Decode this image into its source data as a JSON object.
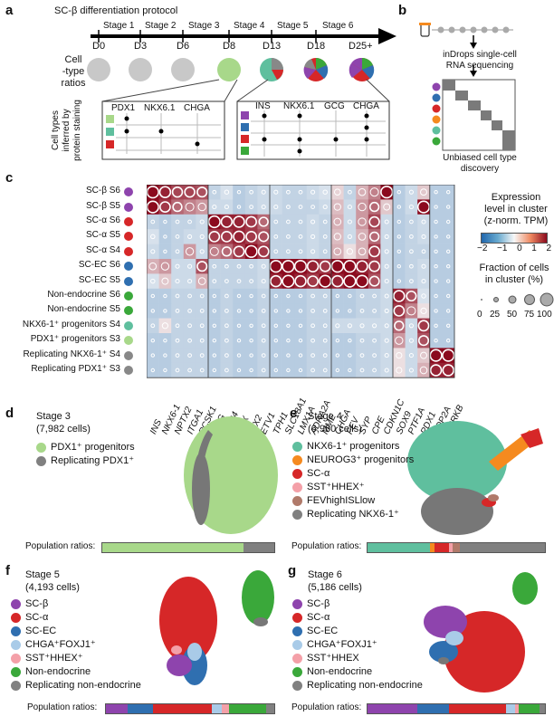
{
  "panel_a": {
    "letter": "a",
    "title": "SC-β differentiation protocol",
    "stages": [
      "Stage 1",
      "Stage 2",
      "Stage 3",
      "Stage 4",
      "Stage 5",
      "Stage 6"
    ],
    "days": [
      "D0",
      "D3",
      "D6",
      "D8",
      "D13",
      "D18",
      "D25+"
    ],
    "celltype_label": "Cell\n-type\nratios",
    "inferred_label": "Cell types inferred by protein staining",
    "box1_headers": [
      "PDX1",
      "NKX6.1",
      "CHGA"
    ],
    "box2_headers": [
      "INS",
      "NKX6.1",
      "GCG",
      "CHGA"
    ]
  },
  "panel_b": {
    "letter": "b",
    "text1": "inDrops single-cell",
    "text2": "RNA sequencing",
    "caption1": "Unbiased cell type",
    "caption2": "discovery"
  },
  "panel_c": {
    "letter": "c",
    "rows": [
      {
        "name": "SC-β",
        "stage": "S6",
        "color": "#8e44ad"
      },
      {
        "name": "SC-β",
        "stage": "S5",
        "color": "#8e44ad"
      },
      {
        "name": "SC-α",
        "stage": "S6",
        "color": "#d62728"
      },
      {
        "name": "SC-α",
        "stage": "S5",
        "color": "#d62728"
      },
      {
        "name": "SC-α",
        "stage": "S4",
        "color": "#d62728"
      },
      {
        "name": "SC-EC",
        "stage": "S6",
        "color": "#2f6fb0"
      },
      {
        "name": "SC-EC",
        "stage": "S5",
        "color": "#2f6fb0"
      },
      {
        "name": "Non-endocrine",
        "stage": "S6",
        "color": "#3aa83a"
      },
      {
        "name": "Non-endocrine",
        "stage": "S5",
        "color": "#3aa83a"
      },
      {
        "name": "NKX6-1⁺ progenitors",
        "stage": "S4",
        "color": "#5fbf9e"
      },
      {
        "name": "PDX1⁺ progenitors",
        "stage": "S3",
        "color": "#a8d88a"
      },
      {
        "name": "Replicating NKX6-1⁺",
        "stage": "S4",
        "color": "#888888"
      },
      {
        "name": "Replicating PDX1⁺",
        "stage": "S3",
        "color": "#888888"
      }
    ],
    "genes": [
      "INS",
      "NKX6-1",
      "NPTX2",
      "ITGA1",
      "PCSK1",
      "GCG",
      "DPP4",
      "ARX",
      "IRX2",
      "ETV1",
      "TPH1",
      "SLC18A1",
      "LMX1A",
      "ADRA2A",
      "MME",
      "CHGA",
      "FEV",
      "SYP",
      "CPE",
      "CDKN1C",
      "SOX9",
      "PTF1A",
      "PDX1",
      "TOP2A",
      "AURKB"
    ],
    "matrix": [
      [
        2,
        1.8,
        1.5,
        1.5,
        1.4,
        -0.5,
        -0.3,
        -0.6,
        -0.5,
        -0.4,
        -0.4,
        -0.5,
        -0.5,
        -0.4,
        -0.3,
        0.3,
        -0.5,
        0.6,
        1.0,
        2,
        -0.6,
        -0.4,
        0.4,
        -0.6,
        -0.6
      ],
      [
        2,
        1.6,
        1.2,
        1.0,
        0.8,
        -0.4,
        -0.4,
        -0.6,
        -0.5,
        -0.4,
        -0.4,
        -0.5,
        -0.5,
        -0.5,
        -0.4,
        0.5,
        -0.4,
        0.8,
        1.2,
        0.4,
        -0.6,
        -0.4,
        2,
        -0.6,
        -0.6
      ],
      [
        -0.5,
        -0.6,
        -0.5,
        -0.5,
        -0.4,
        2,
        1.8,
        1.8,
        1.6,
        1.2,
        -0.5,
        -0.5,
        -0.5,
        -0.4,
        -0.5,
        0.6,
        -0.4,
        0.8,
        1.5,
        -0.4,
        -0.6,
        -0.5,
        -0.4,
        -0.6,
        -0.6
      ],
      [
        -0.3,
        -0.6,
        -0.5,
        -0.4,
        -0.4,
        1.6,
        1.6,
        1.8,
        1.6,
        1.4,
        -0.5,
        -0.5,
        -0.5,
        -0.4,
        -0.5,
        0.5,
        -0.4,
        0.6,
        1.2,
        -0.4,
        -0.6,
        -0.5,
        -0.4,
        -0.6,
        -0.6
      ],
      [
        -0.4,
        -0.6,
        -0.5,
        0.8,
        -0.4,
        1.0,
        1.2,
        1.6,
        2,
        1.6,
        -0.5,
        -0.5,
        -0.5,
        -0.4,
        -0.5,
        0.6,
        0.2,
        0.6,
        1.6,
        -0.4,
        -0.6,
        -0.5,
        -0.5,
        -0.6,
        -0.6
      ],
      [
        0.6,
        0.8,
        -0.4,
        -0.4,
        1.4,
        -0.5,
        -0.5,
        -0.5,
        -0.5,
        -0.4,
        2,
        2,
        2,
        1.8,
        1.6,
        2,
        2,
        1.8,
        1.6,
        -0.4,
        -0.6,
        -0.5,
        -0.4,
        -0.6,
        -0.6
      ],
      [
        -0.3,
        0.4,
        -0.4,
        -0.4,
        0.6,
        -0.5,
        -0.5,
        -0.5,
        -0.5,
        -0.4,
        1.8,
        2,
        1.8,
        1.6,
        2,
        1.8,
        2,
        2,
        1.4,
        -0.4,
        -0.6,
        -0.5,
        -0.4,
        -0.6,
        -0.6
      ],
      [
        -0.6,
        -0.6,
        -0.5,
        -0.5,
        -0.5,
        -0.6,
        -0.5,
        -0.6,
        -0.6,
        -0.5,
        -0.6,
        -0.6,
        -0.6,
        -0.5,
        -0.5,
        -0.6,
        -0.6,
        -0.5,
        -0.5,
        -0.4,
        1.8,
        1.4,
        -0.3,
        -0.6,
        -0.6
      ],
      [
        -0.6,
        -0.6,
        -0.5,
        -0.5,
        -0.5,
        -0.6,
        -0.5,
        -0.6,
        -0.6,
        -0.5,
        -0.6,
        -0.6,
        -0.6,
        -0.5,
        -0.5,
        -0.6,
        -0.6,
        -0.5,
        -0.5,
        -0.4,
        1.6,
        1.0,
        0.2,
        -0.6,
        -0.6
      ],
      [
        -0.5,
        0.2,
        -0.5,
        -0.5,
        -0.5,
        -0.6,
        -0.5,
        -0.6,
        -0.6,
        -0.5,
        -0.6,
        -0.6,
        -0.6,
        -0.5,
        -0.5,
        -0.4,
        -0.4,
        -0.4,
        -0.4,
        -0.4,
        1.2,
        -0.4,
        1.6,
        -0.6,
        -0.6
      ],
      [
        -0.6,
        -0.6,
        -0.5,
        -0.5,
        -0.5,
        -0.6,
        -0.5,
        -0.6,
        -0.6,
        -0.5,
        -0.6,
        -0.6,
        -0.6,
        -0.5,
        -0.5,
        -0.6,
        -0.6,
        -0.5,
        -0.5,
        -0.4,
        0.8,
        -0.4,
        1.4,
        -0.6,
        -0.6
      ],
      [
        -0.6,
        -0.6,
        -0.5,
        -0.5,
        -0.5,
        -0.6,
        -0.5,
        -0.6,
        -0.6,
        -0.5,
        -0.6,
        -0.6,
        -0.6,
        -0.5,
        -0.5,
        -0.6,
        -0.6,
        -0.5,
        -0.5,
        -0.4,
        0.2,
        -0.4,
        0.4,
        2,
        2
      ],
      [
        -0.6,
        -0.6,
        -0.5,
        -0.5,
        -0.5,
        -0.6,
        -0.5,
        -0.6,
        -0.6,
        -0.5,
        -0.6,
        -0.6,
        -0.6,
        -0.5,
        -0.5,
        -0.6,
        -0.6,
        -0.5,
        -0.5,
        -0.4,
        0.2,
        -0.4,
        0.6,
        1.8,
        1.8
      ]
    ],
    "legend_expr_title1": "Expression",
    "legend_expr_title2": "level in cluster",
    "legend_expr_title3": "(z-norm. TPM)",
    "legend_expr_ticks": [
      "−2",
      "−1",
      "0",
      "1",
      "2"
    ],
    "legend_frac_title1": "Fraction of cells",
    "legend_frac_title2": "in cluster (%)",
    "legend_frac_ticks": [
      "0",
      "25",
      "50",
      "75",
      "100"
    ]
  },
  "panel_d": {
    "letter": "d",
    "stage": "Stage 3",
    "cells": "(7,982 cells)",
    "legend": [
      {
        "label": "PDX1⁺ progenitors",
        "color": "#a8d88a"
      },
      {
        "label": "Replicating PDX1⁺",
        "color": "#808080"
      }
    ],
    "ratio_label": "Population ratios:",
    "ratios": [
      {
        "color": "#a8d88a",
        "value": 0.82
      },
      {
        "color": "#808080",
        "value": 0.18
      }
    ]
  },
  "panel_e": {
    "letter": "e",
    "stage": "Stage 4",
    "cells": "(6,960 cells)",
    "legend": [
      {
        "label": "NKX6-1⁺ progenitors",
        "color": "#5fbf9e"
      },
      {
        "label": "NEUROG3⁺ progenitors",
        "color": "#f58a1f"
      },
      {
        "label": "SC-α",
        "color": "#d62728"
      },
      {
        "label": "SST⁺HHEX⁺",
        "color": "#f4a0a8"
      },
      {
        "label": "FEVhighISLlow",
        "color": "#b07a6a"
      },
      {
        "label": "Replicating NKX6-1⁺",
        "color": "#808080"
      }
    ],
    "ratio_label": "Population ratios:",
    "ratios": [
      {
        "color": "#5fbf9e",
        "value": 0.35
      },
      {
        "color": "#f58a1f",
        "value": 0.03
      },
      {
        "color": "#d62728",
        "value": 0.08
      },
      {
        "color": "#f4a0a8",
        "value": 0.02
      },
      {
        "color": "#b07a6a",
        "value": 0.04
      },
      {
        "color": "#808080",
        "value": 0.48
      }
    ]
  },
  "panel_f": {
    "letter": "f",
    "stage": "Stage 5",
    "cells": "(4,193 cells)",
    "legend": [
      {
        "label": "SC-β",
        "color": "#8e44ad"
      },
      {
        "label": "SC-α",
        "color": "#d62728"
      },
      {
        "label": "SC-EC",
        "color": "#2f6fb0"
      },
      {
        "label": "CHGA⁺FOXJ1⁺",
        "color": "#a9cbe8"
      },
      {
        "label": "SST⁺HHEX⁺",
        "color": "#f4a0a8"
      },
      {
        "label": "Non-endocrine",
        "color": "#3aa83a"
      },
      {
        "label": "Replicating non-endocrine",
        "color": "#808080"
      }
    ],
    "ratio_label": "Population ratios:",
    "ratios": [
      {
        "color": "#8e44ad",
        "value": 0.13
      },
      {
        "color": "#2f6fb0",
        "value": 0.15
      },
      {
        "color": "#d62728",
        "value": 0.35
      },
      {
        "color": "#a9cbe8",
        "value": 0.06
      },
      {
        "color": "#f4a0a8",
        "value": 0.04
      },
      {
        "color": "#3aa83a",
        "value": 0.22
      },
      {
        "color": "#808080",
        "value": 0.05
      }
    ]
  },
  "panel_g": {
    "letter": "g",
    "stage": "Stage 6",
    "cells": "(5,186 cells)",
    "legend": [
      {
        "label": "SC-β",
        "color": "#8e44ad"
      },
      {
        "label": "SC-α",
        "color": "#d62728"
      },
      {
        "label": "SC-EC",
        "color": "#2f6fb0"
      },
      {
        "label": "CHGA⁺FOXJ1⁺",
        "color": "#a9cbe8"
      },
      {
        "label": "SST⁺HHEX",
        "color": "#f4a0a8"
      },
      {
        "label": "Non-endocrine",
        "color": "#3aa83a"
      },
      {
        "label": "Replicating non-endocrine",
        "color": "#808080"
      }
    ],
    "ratio_label": "Population ratios:",
    "ratios": [
      {
        "color": "#8e44ad",
        "value": 0.28
      },
      {
        "color": "#2f6fb0",
        "value": 0.18
      },
      {
        "color": "#d62728",
        "value": 0.32
      },
      {
        "color": "#a9cbe8",
        "value": 0.05
      },
      {
        "color": "#f4a0a8",
        "value": 0.02
      },
      {
        "color": "#3aa83a",
        "value": 0.12
      },
      {
        "color": "#808080",
        "value": 0.03
      }
    ]
  }
}
